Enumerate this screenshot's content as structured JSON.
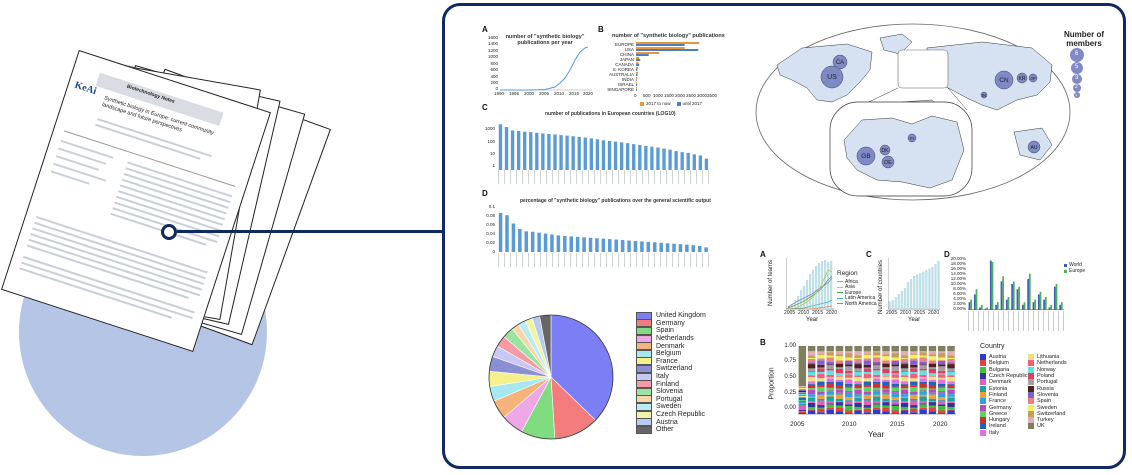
{
  "papers": {
    "journal": "Biotechnology Notes",
    "logo": "KeAi",
    "title": "Synthetic biology in Europe: current community landscape and future perspectives"
  },
  "panelA": {
    "letter": "A",
    "title": "number of \"synthetic biology\" publications per year",
    "yticks": [
      "1600",
      "1400",
      "1200",
      "1000",
      "800",
      "600",
      "400",
      "200",
      "0"
    ],
    "xticks": [
      "1990",
      "1995",
      "2000",
      "2005",
      "2010",
      "2015",
      "2020"
    ]
  },
  "panelB": {
    "letter": "B",
    "title": "number of \"synthetic biology\" publications",
    "categories": [
      "EUROPE",
      "USA",
      "CHINA",
      "JAPAN",
      "CANADA",
      "S. KOREA",
      "AUSTRALIA",
      "INDIA",
      "ISRAEL",
      "SINGAPORE"
    ],
    "series": [
      {
        "name": "2017 to now",
        "color": "#e8963a",
        "values": [
          3000,
          2300,
          1100,
          150,
          120,
          100,
          90,
          60,
          40,
          40
        ]
      },
      {
        "name": "until 2017",
        "color": "#4a7fc1",
        "values": [
          2300,
          2950,
          600,
          200,
          150,
          60,
          70,
          30,
          50,
          40
        ]
      }
    ],
    "xticks": [
      "0",
      "500",
      "1000",
      "1500",
      "2000",
      "2500",
      "3000",
      "3500"
    ]
  },
  "panelC": {
    "letter": "C",
    "title": "number of publications in European countries (LOG10)",
    "yticks": [
      "1000",
      "100",
      "10",
      "1"
    ],
    "values": [
      1400,
      900,
      520,
      480,
      430,
      400,
      360,
      330,
      300,
      280,
      250,
      230,
      210,
      190,
      170,
      150,
      130,
      110,
      100,
      90,
      80,
      70,
      60,
      52,
      45,
      40,
      35,
      30,
      25,
      20,
      17,
      15,
      12,
      10,
      6
    ],
    "color": "#5a9bd6"
  },
  "panelD": {
    "letter": "D",
    "title": "percentage of \"synthetic biology\" publications over the general scientific output",
    "yticks": [
      "0.1",
      "0.08",
      "0.06",
      "0.04",
      "0.02",
      "0"
    ],
    "values": [
      0.085,
      0.08,
      0.062,
      0.05,
      0.045,
      0.044,
      0.042,
      0.04,
      0.038,
      0.036,
      0.035,
      0.034,
      0.033,
      0.032,
      0.031,
      0.03,
      0.029,
      0.028,
      0.027,
      0.026,
      0.025,
      0.024,
      0.023,
      0.022,
      0.021,
      0.02,
      0.019,
      0.018,
      0.017,
      0.016,
      0.015,
      0.013,
      0.01
    ],
    "color": "#5a9bd6"
  },
  "pie": {
    "legend": [
      "United Kingdom",
      "Germany",
      "Spain",
      "Netherlands",
      "Denmark",
      "Belgium",
      "France",
      "Switzerland",
      "Italy",
      "Finland",
      "Slovenia",
      "Portugal",
      "Sweden",
      "Czech Republic",
      "Austria",
      "Other"
    ],
    "values": [
      38,
      12,
      9,
      6,
      5,
      4,
      4,
      4,
      3,
      3,
      3,
      2,
      2,
      2,
      2,
      3
    ],
    "colors": [
      "#7b7ef5",
      "#f47c7c",
      "#7fdc7f",
      "#f0a7e8",
      "#f5b27a",
      "#a6e8ef",
      "#f5f08a",
      "#8a8fd6",
      "#c8c8f6",
      "#f59ba5",
      "#9be3a0",
      "#f7d6a8",
      "#b8ecf2",
      "#f3f3a8",
      "#b9c9f0",
      "#666666"
    ]
  },
  "map": {
    "legend_title": "Number of members",
    "legend_values": [
      "6",
      "5",
      "3",
      "2",
      "1"
    ],
    "bubbles": [
      "CA",
      "US",
      "CN",
      "KR",
      "JP",
      "IN",
      "AU",
      "FI",
      "DK",
      "GB",
      "DE"
    ]
  },
  "teamsA": {
    "letter": "A",
    "ylabel": "Number of teams",
    "xlabel": "Year",
    "xticks": [
      "2005",
      "2010",
      "2015",
      "2020"
    ],
    "legend_title": "Region",
    "legend": [
      {
        "name": "Africa",
        "color": "#e38c5a"
      },
      {
        "name": "Asia",
        "color": "#c7c24a"
      },
      {
        "name": "Europe",
        "color": "#4fb05a"
      },
      {
        "name": "Latin America",
        "color": "#3fb8c0"
      },
      {
        "name": "North America",
        "color": "#8a7fd6"
      }
    ]
  },
  "teamsC": {
    "letter": "C",
    "ylabel": "Number of countries",
    "xlabel": "Year",
    "xticks": [
      "2005",
      "2010",
      "2015",
      "2020"
    ],
    "values": [
      5,
      6,
      8,
      10,
      12,
      14,
      18,
      20,
      22,
      23,
      24,
      25,
      26,
      27,
      28,
      30,
      32
    ]
  },
  "teamsD": {
    "letter": "D",
    "yticks": [
      "20.00%",
      "18.00%",
      "16.00%",
      "14.00%",
      "12.00%",
      "10.00%",
      "8.00%",
      "6.00%",
      "4.00%",
      "2.00%",
      "0.00%"
    ],
    "legend": [
      {
        "name": "World",
        "color": "#3b5fb5"
      },
      {
        "name": "Europe",
        "color": "#4fb05a"
      }
    ],
    "world": [
      3,
      6,
      1,
      0.5,
      19,
      2,
      11,
      4,
      10,
      8,
      2,
      12,
      3,
      6,
      4,
      1,
      9,
      2
    ],
    "europe": [
      4,
      8,
      2,
      1,
      18.5,
      3,
      13,
      5,
      11,
      9,
      3,
      14,
      4,
      7,
      5,
      2,
      10,
      3
    ]
  },
  "teamsB": {
    "letter": "B",
    "ylabel": "Proportion",
    "xlabel": "Year",
    "yticks": [
      "1.00",
      "0.75",
      "0.50",
      "0.25",
      "0.00"
    ],
    "xticks": [
      "2005",
      "2010",
      "2015",
      "2020"
    ],
    "legend_title": "Country",
    "legend_col1": [
      {
        "name": "Austria",
        "color": "#2b3bd6"
      },
      {
        "name": "Belgium",
        "color": "#e04040"
      },
      {
        "name": "Bulgaria",
        "color": "#40c040"
      },
      {
        "name": "Czech Republic",
        "color": "#333399"
      },
      {
        "name": "Denmark",
        "color": "#e060c0"
      },
      {
        "name": "Estonia",
        "color": "#20a0a0"
      },
      {
        "name": "Finland",
        "color": "#f0a030"
      },
      {
        "name": "France",
        "color": "#30a0e0"
      },
      {
        "name": "Germany",
        "color": "#b050c0"
      },
      {
        "name": "Greece",
        "color": "#60d060"
      },
      {
        "name": "Hungary",
        "color": "#d03030"
      },
      {
        "name": "Ireland",
        "color": "#2060c0"
      },
      {
        "name": "Italy",
        "color": "#e070e0"
      }
    ],
    "legend_col2": [
      {
        "name": "Lithuania",
        "color": "#f0e080"
      },
      {
        "name": "Netherlands",
        "color": "#f06080"
      },
      {
        "name": "Norway",
        "color": "#60e0e0"
      },
      {
        "name": "Poland",
        "color": "#e04060"
      },
      {
        "name": "Portugal",
        "color": "#a0a0a0"
      },
      {
        "name": "Russia",
        "color": "#502020"
      },
      {
        "name": "Slovenia",
        "color": "#8060d0"
      },
      {
        "name": "Spain",
        "color": "#f08080"
      },
      {
        "name": "Sweden",
        "color": "#f0f060"
      },
      {
        "name": "Switzerland",
        "color": "#c0a060"
      },
      {
        "name": "Turkey",
        "color": "#e0b0b0"
      },
      {
        "name": "UK",
        "color": "#7f7f5f"
      }
    ]
  }
}
